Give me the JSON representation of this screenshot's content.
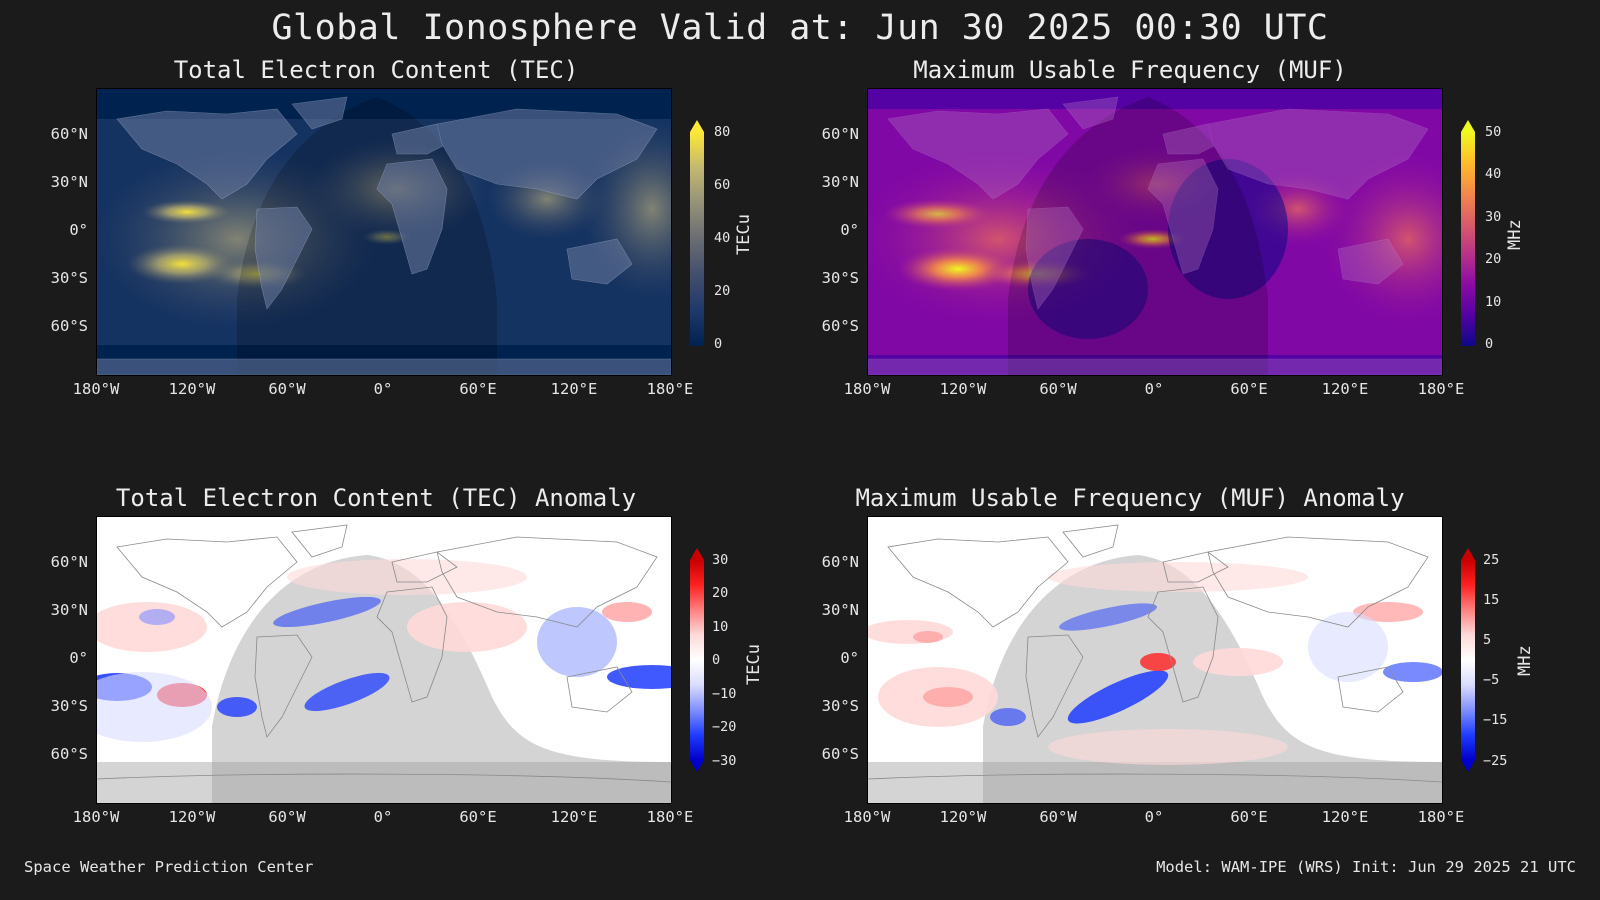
{
  "page_title": "Global Ionosphere Valid at: Jun 30 2025 00:30 UTC",
  "footer": {
    "left": "Space Weather Prediction Center",
    "right": "Model: WAM-IPE (WRS) Init: Jun 29 2025 21 UTC"
  },
  "lon_ticks": [
    "180°W",
    "120°W",
    "60°W",
    "0°",
    "60°E",
    "120°E",
    "180°E"
  ],
  "lat_ticks": [
    "60°N",
    "30°N",
    "0°",
    "30°S",
    "60°S"
  ],
  "panels": {
    "tec": {
      "title": "Total Electron Content (TEC)",
      "colorbar_label": "TECu",
      "colorbar_ticks": [
        "80",
        "60",
        "40",
        "20",
        "0"
      ],
      "colormap": [
        "#00224e",
        "#1e3a6a",
        "#434e6c",
        "#6a6d73",
        "#949177",
        "#c3b870",
        "#fee838"
      ]
    },
    "muf": {
      "title": "Maximum Usable Frequency (MUF)",
      "colorbar_label": "MHz",
      "colorbar_ticks": [
        "50",
        "40",
        "30",
        "20",
        "10",
        "0"
      ],
      "colormap": [
        "#0d0887",
        "#5402a3",
        "#8b0aa5",
        "#b93289",
        "#db5c68",
        "#f48849",
        "#febd2a",
        "#f0f921"
      ]
    },
    "tec_anom": {
      "title": "Total Electron Content (TEC) Anomaly",
      "colorbar_label": "TECu",
      "colorbar_ticks": [
        "30",
        "20",
        "10",
        "0",
        "−10",
        "−20",
        "−30"
      ],
      "colormap": [
        "#0000c8",
        "#1f3cff",
        "#7f8fff",
        "#d9dcff",
        "#ffffff",
        "#ffd9d9",
        "#ff8080",
        "#ff2020",
        "#c80000"
      ]
    },
    "muf_anom": {
      "title": "Maximum Usable Frequency (MUF) Anomaly",
      "colorbar_label": "MHz",
      "colorbar_ticks": [
        "25",
        "15",
        "5",
        "−5",
        "−15",
        "−25"
      ],
      "colormap": [
        "#0000c8",
        "#1f3cff",
        "#7f8fff",
        "#d9dcff",
        "#ffffff",
        "#ffd9d9",
        "#ff8080",
        "#ff2020",
        "#c80000"
      ]
    }
  }
}
